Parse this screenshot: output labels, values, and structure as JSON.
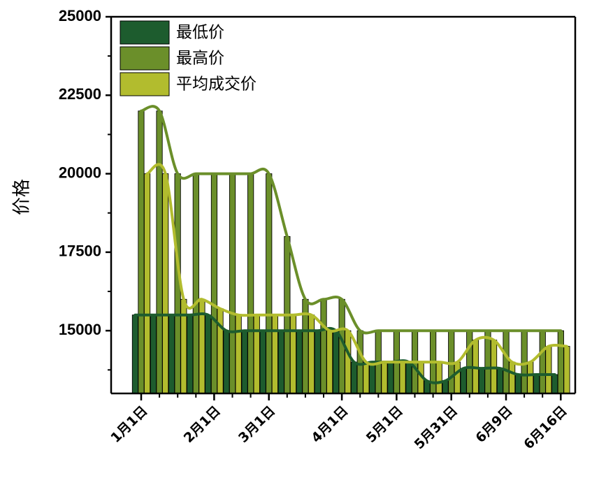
{
  "chart_data": {
    "type": "bar",
    "title": "",
    "xlabel": "",
    "ylabel": "价格",
    "ylim": [
      13000,
      25000
    ],
    "yticks": [
      15000,
      17500,
      20000,
      22500,
      25000
    ],
    "x_tick_labels": [
      {
        "index": 0,
        "label": "1月1日"
      },
      {
        "index": 4,
        "label": "2月1日"
      },
      {
        "index": 7,
        "label": "3月1日"
      },
      {
        "index": 11,
        "label": "4月1日"
      },
      {
        "index": 14,
        "label": "5月1日"
      },
      {
        "index": 17,
        "label": "5月31日"
      },
      {
        "index": 20,
        "label": "6月9日"
      },
      {
        "index": 23,
        "label": "6月16日"
      }
    ],
    "n_categories": 24,
    "series": [
      {
        "name": "最低价",
        "color": "#1d5c2e",
        "values": [
          15500,
          15500,
          15500,
          15500,
          15500,
          15000,
          15000,
          15000,
          15000,
          15000,
          15000,
          15000,
          14000,
          14000,
          14000,
          14000,
          13400,
          13400,
          13800,
          13800,
          13800,
          13600,
          13600,
          13600
        ]
      },
      {
        "name": "最高价",
        "color": "#6b8f2a",
        "values": [
          22000,
          22000,
          20000,
          20000,
          20000,
          20000,
          20000,
          20000,
          18000,
          16000,
          16000,
          16000,
          15000,
          15000,
          15000,
          15000,
          15000,
          15000,
          15000,
          15000,
          15000,
          15000,
          15000,
          15000
        ]
      },
      {
        "name": "平均成交价",
        "color": "#b2bc2e",
        "values": [
          20000,
          20000,
          16000,
          16000,
          15700,
          15500,
          15500,
          15500,
          15500,
          15500,
          15000,
          15000,
          14000,
          14000,
          14000,
          14000,
          14000,
          14000,
          14700,
          14700,
          14000,
          14000,
          14500,
          14500
        ]
      }
    ],
    "lines": "smoothed line over each series drawn on top of bars",
    "legend_position": "top-left",
    "grid": false
  }
}
